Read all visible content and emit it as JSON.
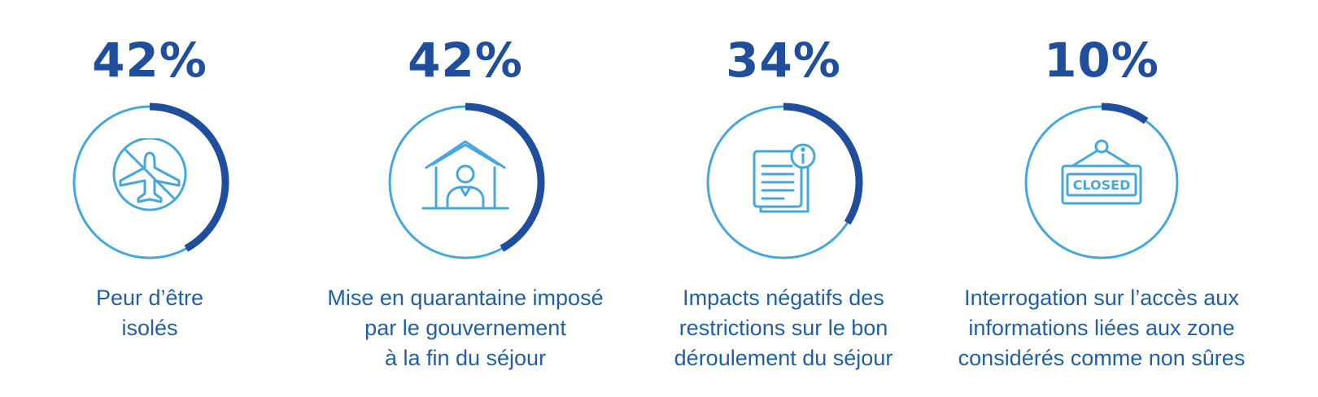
{
  "colors": {
    "dark_blue": "#1f4e9c",
    "light_blue": "#45a7dc",
    "text_blue": "#1f5fa8"
  },
  "chart_data": {
    "type": "donut",
    "items": [
      {
        "value": 42,
        "value_label": "42%",
        "label_lines": [
          "Peur d’être",
          "isolés"
        ],
        "icon": "no-flight-icon"
      },
      {
        "value": 42,
        "value_label": "42%",
        "label_lines": [
          "Mise en quarantaine imposé",
          "par le gouvernement",
          "à la fin du séjour"
        ],
        "icon": "home-person-icon"
      },
      {
        "value": 34,
        "value_label": "34%",
        "label_lines": [
          "Impacts négatifs des",
          "restrictions sur le bon",
          "déroulement du séjour"
        ],
        "icon": "document-info-icon"
      },
      {
        "value": 10,
        "value_label": "10%",
        "label_lines": [
          "Interrogation sur l’accès aux",
          "informations liées aux zone",
          "considérés comme non sûres"
        ],
        "icon": "closed-sign-icon"
      }
    ]
  },
  "icons": {
    "closed_sign_text": "CLOSED"
  }
}
